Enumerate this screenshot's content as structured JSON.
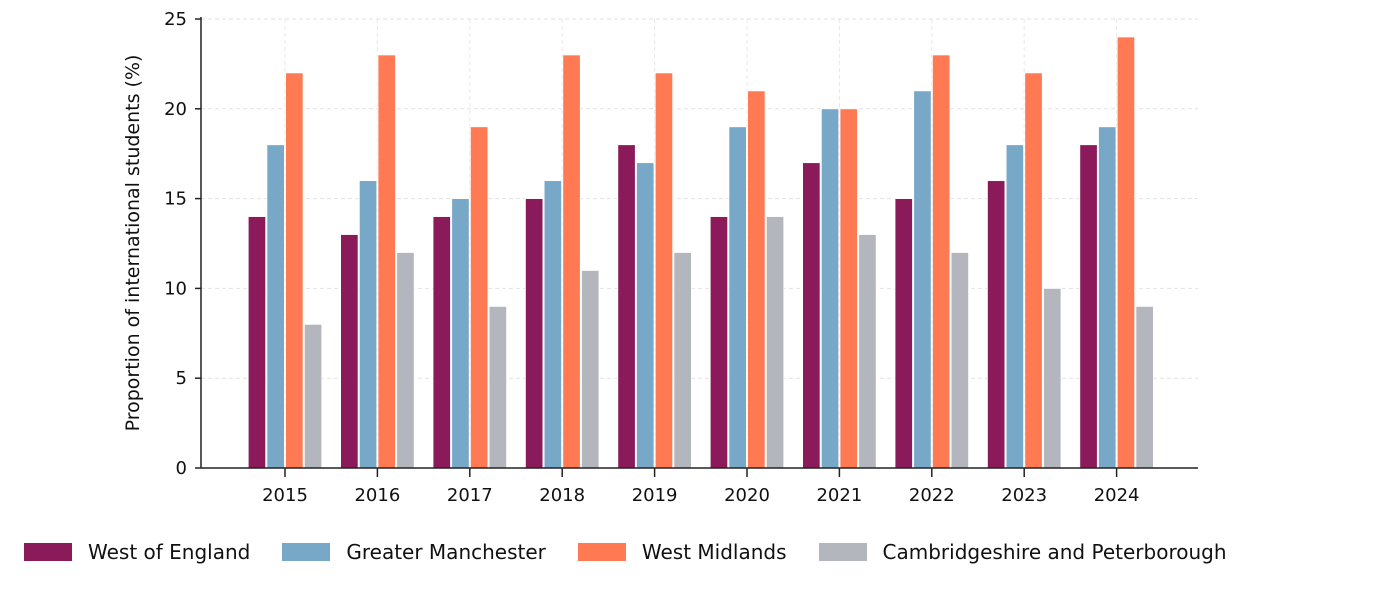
{
  "chart_data": {
    "type": "bar",
    "title": "",
    "xlabel": "",
    "ylabel": "Proportion of international students (%)",
    "ylim": [
      0,
      25
    ],
    "yticks": [
      0,
      5,
      10,
      15,
      20,
      25
    ],
    "grid": true,
    "legend_position": "bottom",
    "categories": [
      "2015",
      "2016",
      "2017",
      "2018",
      "2019",
      "2020",
      "2021",
      "2022",
      "2023",
      "2024"
    ],
    "series": [
      {
        "name": "West of England",
        "color": "#8A1A5A",
        "values": [
          14,
          13,
          14,
          15,
          18,
          14,
          17,
          15,
          16,
          18
        ]
      },
      {
        "name": "Greater Manchester",
        "color": "#78A8C8",
        "values": [
          18,
          16,
          15,
          16,
          17,
          19,
          20,
          21,
          18,
          19
        ]
      },
      {
        "name": "West Midlands",
        "color": "#FF7A52",
        "values": [
          22,
          23,
          19,
          23,
          22,
          21,
          20,
          23,
          22,
          24
        ]
      },
      {
        "name": "Cambridgeshire and Peterborough",
        "color": "#B3B6BD",
        "values": [
          8,
          12,
          9,
          11,
          12,
          14,
          13,
          12,
          10,
          9
        ]
      }
    ]
  }
}
